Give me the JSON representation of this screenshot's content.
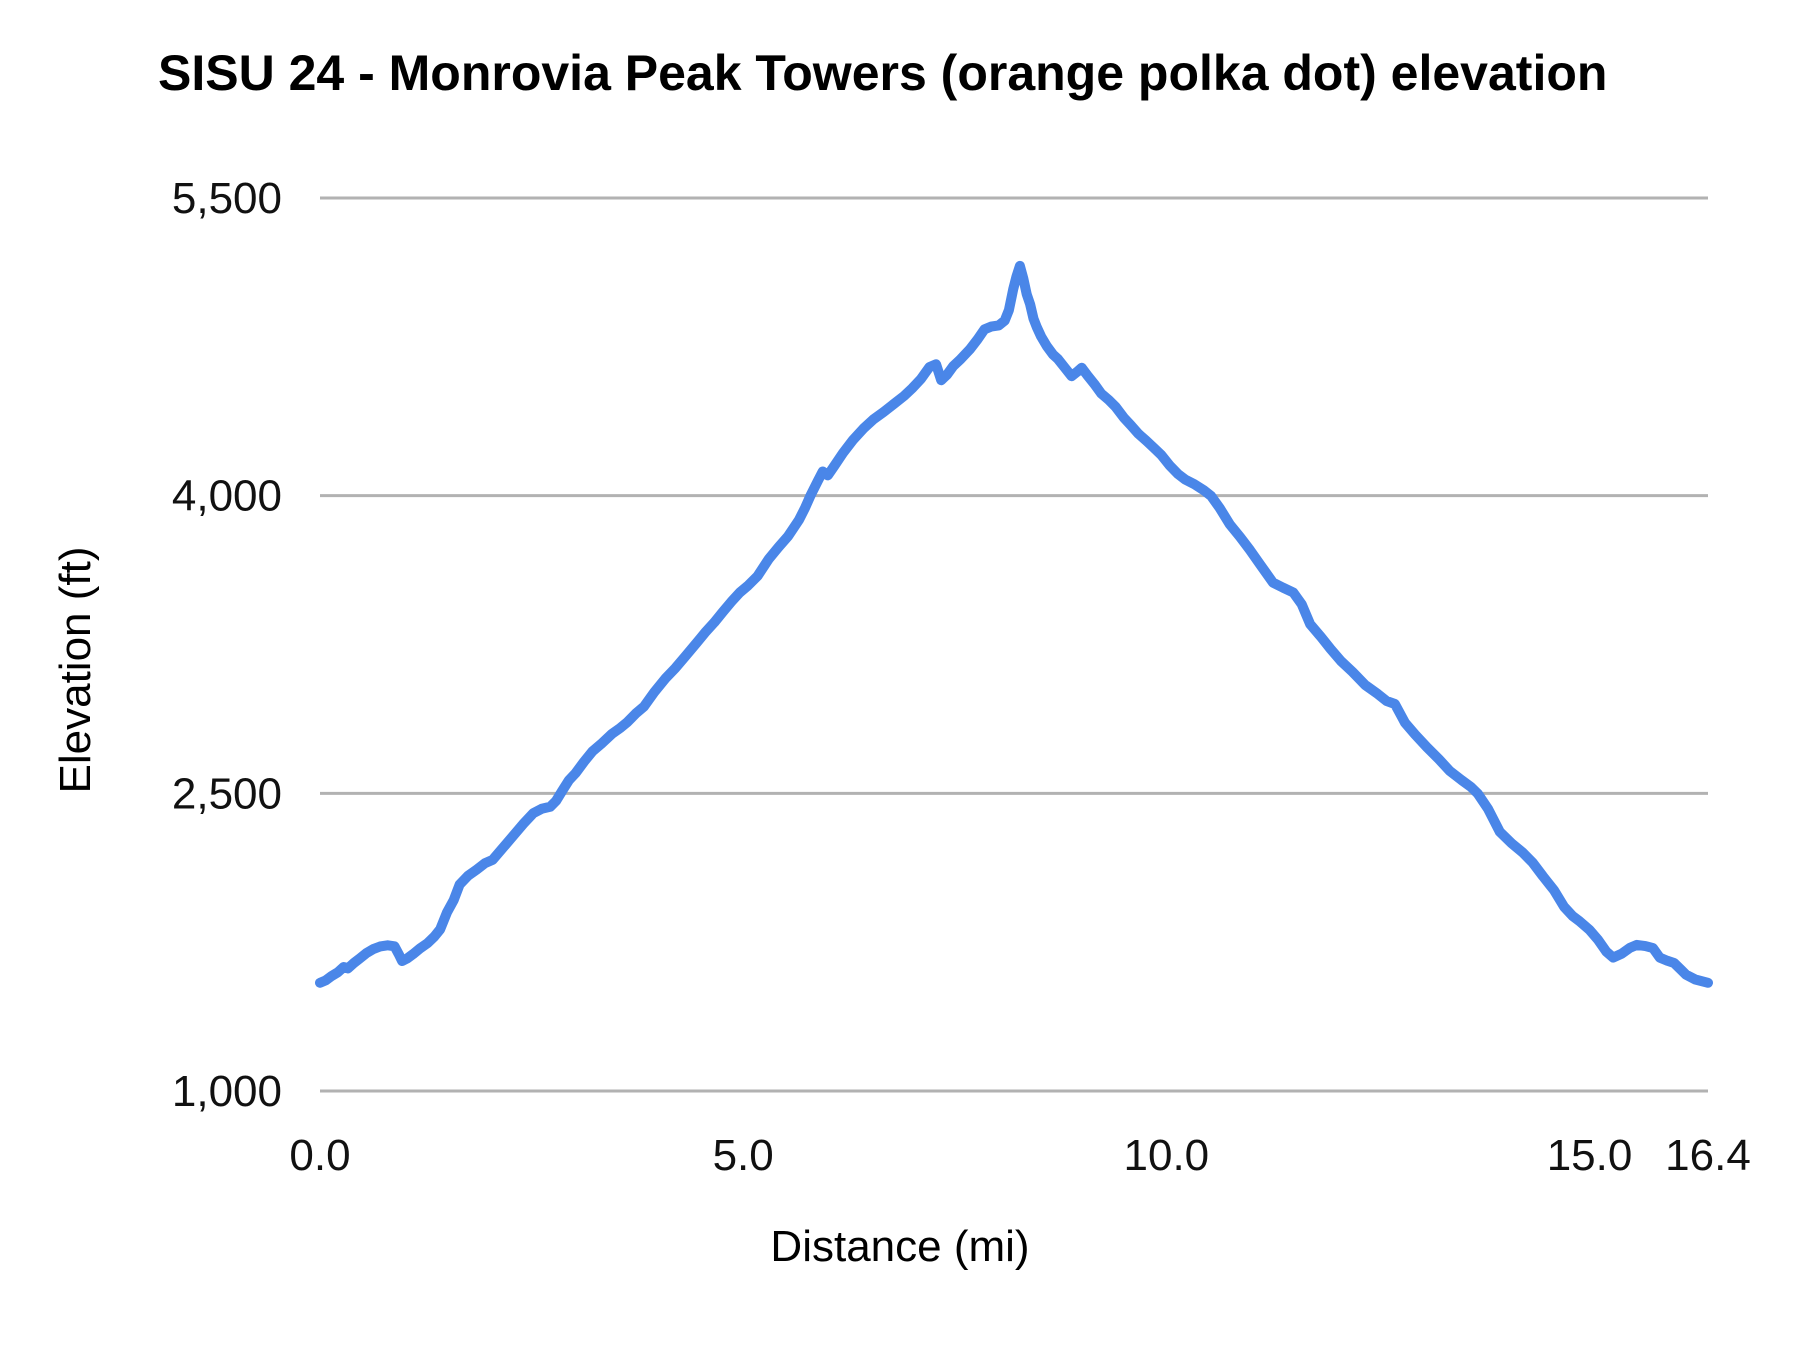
{
  "chart_data": {
    "type": "line",
    "title": "SISU 24 - Monrovia Peak Towers (orange polka dot) elevation",
    "xlabel": "Distance (mi)",
    "ylabel": "Elevation (ft)",
    "xlim": [
      0,
      16.4
    ],
    "ylim": [
      1000,
      5500
    ],
    "grid": "horizontal",
    "legend_position": "none",
    "grid_color": "#b2b2b2",
    "line_color": "#4a86e8",
    "line_width": 10,
    "x_ticks": [
      {
        "value": 0.0,
        "label": "0.0"
      },
      {
        "value": 5.0,
        "label": "5.0"
      },
      {
        "value": 10.0,
        "label": "10.0"
      },
      {
        "value": 15.0,
        "label": "15.0"
      },
      {
        "value": 16.4,
        "label": "16.4"
      }
    ],
    "y_ticks": [
      {
        "value": 1000,
        "label": "1,000"
      },
      {
        "value": 2500,
        "label": "2,500"
      },
      {
        "value": 4000,
        "label": "4,000"
      },
      {
        "value": 5500,
        "label": "5,500"
      }
    ],
    "series": [
      {
        "name": "elevation",
        "points": [
          [
            0.0,
            1545
          ],
          [
            0.07,
            1558
          ],
          [
            0.14,
            1580
          ],
          [
            0.21,
            1598
          ],
          [
            0.28,
            1625
          ],
          [
            0.33,
            1618
          ],
          [
            0.4,
            1645
          ],
          [
            0.47,
            1668
          ],
          [
            0.55,
            1695
          ],
          [
            0.63,
            1715
          ],
          [
            0.71,
            1728
          ],
          [
            0.8,
            1734
          ],
          [
            0.88,
            1729
          ],
          [
            0.93,
            1690
          ],
          [
            0.97,
            1655
          ],
          [
            1.03,
            1668
          ],
          [
            1.1,
            1690
          ],
          [
            1.18,
            1718
          ],
          [
            1.27,
            1745
          ],
          [
            1.35,
            1778
          ],
          [
            1.42,
            1815
          ],
          [
            1.5,
            1900
          ],
          [
            1.58,
            1962
          ],
          [
            1.65,
            2040
          ],
          [
            1.75,
            2085
          ],
          [
            1.85,
            2115
          ],
          [
            1.95,
            2148
          ],
          [
            2.04,
            2165
          ],
          [
            2.15,
            2220
          ],
          [
            2.28,
            2285
          ],
          [
            2.4,
            2345
          ],
          [
            2.52,
            2400
          ],
          [
            2.62,
            2422
          ],
          [
            2.72,
            2432
          ],
          [
            2.79,
            2462
          ],
          [
            2.86,
            2512
          ],
          [
            2.94,
            2565
          ],
          [
            3.02,
            2602
          ],
          [
            3.12,
            2660
          ],
          [
            3.22,
            2712
          ],
          [
            3.32,
            2748
          ],
          [
            3.45,
            2800
          ],
          [
            3.55,
            2830
          ],
          [
            3.63,
            2858
          ],
          [
            3.73,
            2902
          ],
          [
            3.83,
            2938
          ],
          [
            3.95,
            3010
          ],
          [
            4.08,
            3078
          ],
          [
            4.2,
            3132
          ],
          [
            4.32,
            3192
          ],
          [
            4.45,
            3258
          ],
          [
            4.56,
            3315
          ],
          [
            4.66,
            3362
          ],
          [
            4.76,
            3415
          ],
          [
            4.86,
            3465
          ],
          [
            4.96,
            3512
          ],
          [
            5.06,
            3548
          ],
          [
            5.17,
            3595
          ],
          [
            5.3,
            3680
          ],
          [
            5.42,
            3742
          ],
          [
            5.53,
            3795
          ],
          [
            5.66,
            3878
          ],
          [
            5.73,
            3938
          ],
          [
            5.8,
            4005
          ],
          [
            5.88,
            4072
          ],
          [
            5.94,
            4122
          ],
          [
            6.0,
            4102
          ],
          [
            6.08,
            4152
          ],
          [
            6.18,
            4215
          ],
          [
            6.3,
            4282
          ],
          [
            6.42,
            4338
          ],
          [
            6.54,
            4385
          ],
          [
            6.66,
            4422
          ],
          [
            6.78,
            4462
          ],
          [
            6.9,
            4502
          ],
          [
            7.0,
            4542
          ],
          [
            7.1,
            4588
          ],
          [
            7.2,
            4648
          ],
          [
            7.28,
            4662
          ],
          [
            7.34,
            4582
          ],
          [
            7.41,
            4610
          ],
          [
            7.48,
            4652
          ],
          [
            7.57,
            4688
          ],
          [
            7.68,
            4738
          ],
          [
            7.77,
            4788
          ],
          [
            7.85,
            4838
          ],
          [
            7.93,
            4852
          ],
          [
            8.02,
            4858
          ],
          [
            8.09,
            4882
          ],
          [
            8.14,
            4935
          ],
          [
            8.19,
            5040
          ],
          [
            8.23,
            5105
          ],
          [
            8.27,
            5158
          ],
          [
            8.31,
            5095
          ],
          [
            8.35,
            5015
          ],
          [
            8.39,
            4965
          ],
          [
            8.43,
            4892
          ],
          [
            8.47,
            4848
          ],
          [
            8.52,
            4802
          ],
          [
            8.59,
            4752
          ],
          [
            8.66,
            4712
          ],
          [
            8.72,
            4688
          ],
          [
            8.8,
            4645
          ],
          [
            8.88,
            4602
          ],
          [
            8.94,
            4622
          ],
          [
            9.0,
            4645
          ],
          [
            9.07,
            4605
          ],
          [
            9.15,
            4562
          ],
          [
            9.23,
            4515
          ],
          [
            9.32,
            4482
          ],
          [
            9.4,
            4448
          ],
          [
            9.5,
            4392
          ],
          [
            9.58,
            4355
          ],
          [
            9.67,
            4312
          ],
          [
            9.76,
            4278
          ],
          [
            9.85,
            4242
          ],
          [
            9.94,
            4205
          ],
          [
            10.04,
            4152
          ],
          [
            10.14,
            4108
          ],
          [
            10.22,
            4082
          ],
          [
            10.33,
            4058
          ],
          [
            10.44,
            4028
          ],
          [
            10.53,
            3998
          ],
          [
            10.63,
            3938
          ],
          [
            10.75,
            3855
          ],
          [
            10.87,
            3792
          ],
          [
            10.99,
            3725
          ],
          [
            11.11,
            3652
          ],
          [
            11.26,
            3562
          ],
          [
            11.38,
            3536
          ],
          [
            11.5,
            3512
          ],
          [
            11.6,
            3452
          ],
          [
            11.7,
            3352
          ],
          [
            11.82,
            3292
          ],
          [
            11.94,
            3228
          ],
          [
            12.06,
            3168
          ],
          [
            12.2,
            3112
          ],
          [
            12.35,
            3046
          ],
          [
            12.5,
            3000
          ],
          [
            12.6,
            2966
          ],
          [
            12.7,
            2950
          ],
          [
            12.82,
            2856
          ],
          [
            12.94,
            2796
          ],
          [
            13.08,
            2732
          ],
          [
            13.22,
            2672
          ],
          [
            13.35,
            2612
          ],
          [
            13.49,
            2566
          ],
          [
            13.6,
            2532
          ],
          [
            13.68,
            2498
          ],
          [
            13.8,
            2422
          ],
          [
            13.94,
            2306
          ],
          [
            14.08,
            2248
          ],
          [
            14.21,
            2202
          ],
          [
            14.33,
            2150
          ],
          [
            14.45,
            2082
          ],
          [
            14.58,
            2012
          ],
          [
            14.7,
            1928
          ],
          [
            14.8,
            1882
          ],
          [
            14.88,
            1856
          ],
          [
            15.0,
            1812
          ],
          [
            15.1,
            1762
          ],
          [
            15.2,
            1702
          ],
          [
            15.28,
            1672
          ],
          [
            15.38,
            1692
          ],
          [
            15.48,
            1722
          ],
          [
            15.56,
            1736
          ],
          [
            15.66,
            1730
          ],
          [
            15.75,
            1720
          ],
          [
            15.83,
            1672
          ],
          [
            15.92,
            1656
          ],
          [
            16.0,
            1645
          ],
          [
            16.08,
            1612
          ],
          [
            16.14,
            1586
          ],
          [
            16.25,
            1562
          ],
          [
            16.4,
            1545
          ]
        ]
      }
    ]
  }
}
